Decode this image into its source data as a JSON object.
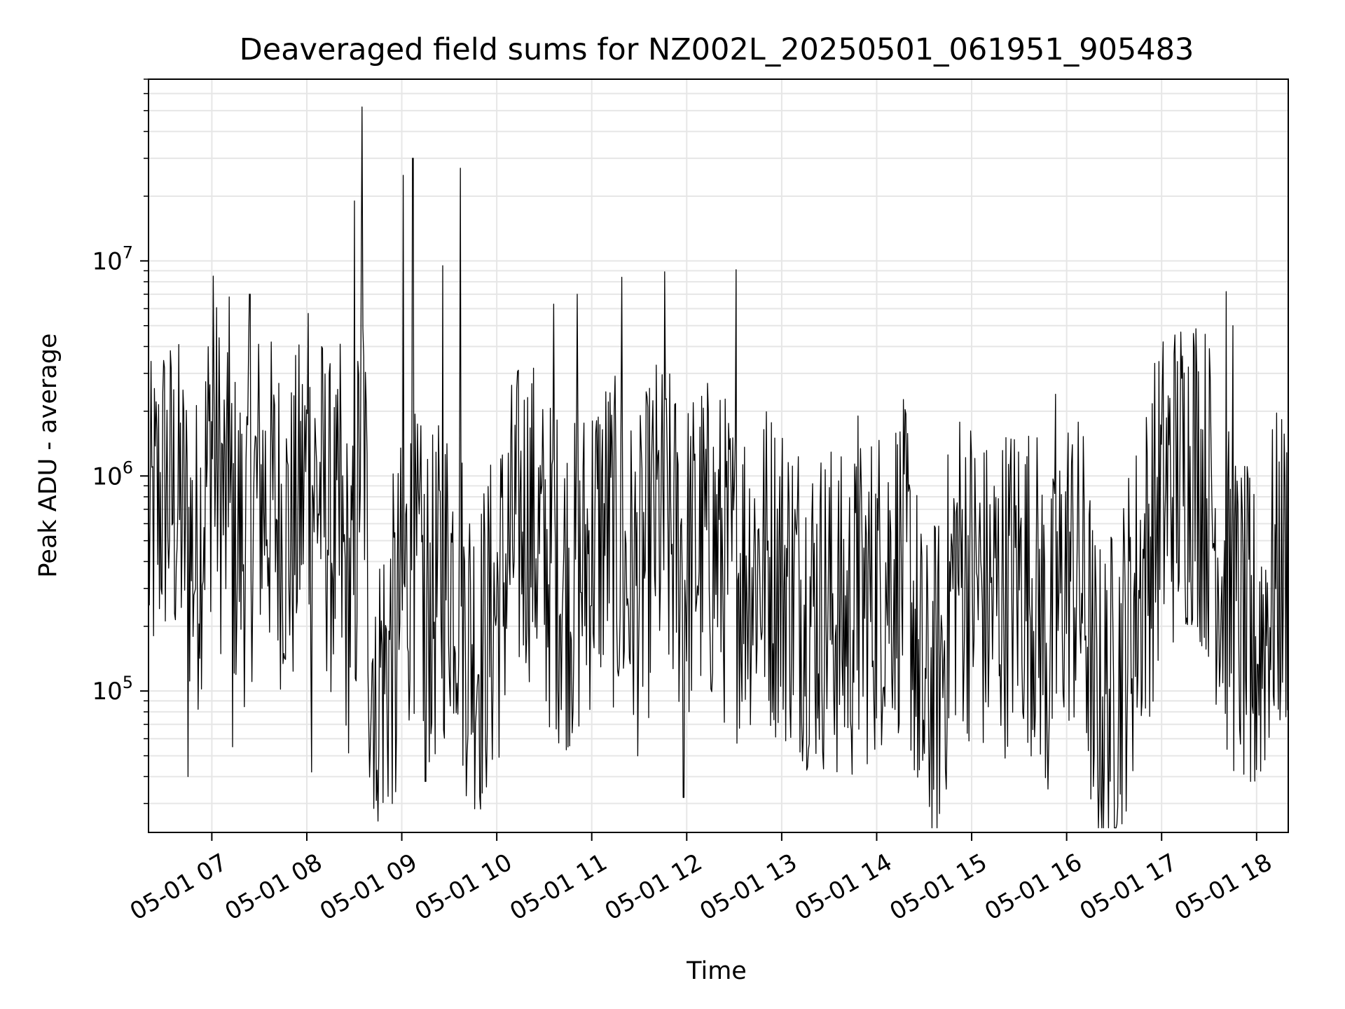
{
  "chart_data": {
    "type": "line",
    "title": "Deaveraged field sums for NZ002L_20250501_061951_905483",
    "xlabel": "Time",
    "ylabel": "Peak ADU - average",
    "x_range": [
      "2025-05-01T06:20:00",
      "2025-05-01T18:20:00"
    ],
    "y_scale": "log",
    "ylim": [
      22000,
      70000000
    ],
    "grid": true,
    "x_tick_labels": [
      "05-01 07",
      "05-01 08",
      "05-01 09",
      "05-01 10",
      "05-01 11",
      "05-01 12",
      "05-01 13",
      "05-01 14",
      "05-01 15",
      "05-01 16",
      "05-01 17",
      "05-01 18"
    ],
    "y_ticks": [
      {
        "value": 100000,
        "base": "10",
        "exp": "5"
      },
      {
        "value": 1000000,
        "base": "10",
        "exp": "6"
      },
      {
        "value": 10000000,
        "base": "10",
        "exp": "7"
      }
    ],
    "series": [
      {
        "color": "#000000",
        "x": [
          "2025-05-01T06:20:00",
          "2025-05-01T06:30:00",
          "2025-05-01T06:40:00",
          "2025-05-01T06:50:00",
          "2025-05-01T07:00:00",
          "2025-05-01T07:10:00",
          "2025-05-01T07:20:00",
          "2025-05-01T07:30:00",
          "2025-05-01T07:40:00",
          "2025-05-01T07:50:00",
          "2025-05-01T08:00:00",
          "2025-05-01T08:10:00",
          "2025-05-01T08:20:00",
          "2025-05-01T08:30:00",
          "2025-05-01T08:35:00",
          "2025-05-01T08:40:00",
          "2025-05-01T08:50:00",
          "2025-05-01T09:00:00",
          "2025-05-01T09:05:00",
          "2025-05-01T09:10:00",
          "2025-05-01T09:20:00",
          "2025-05-01T09:30:00",
          "2025-05-01T09:35:00",
          "2025-05-01T09:40:00",
          "2025-05-01T09:50:00",
          "2025-05-01T10:00:00",
          "2025-05-01T10:10:00",
          "2025-05-01T10:20:00",
          "2025-05-01T10:30:00",
          "2025-05-01T10:40:00",
          "2025-05-01T10:50:00",
          "2025-05-01T11:00:00",
          "2025-05-01T11:10:00",
          "2025-05-01T11:20:00",
          "2025-05-01T11:30:00",
          "2025-05-01T11:40:00",
          "2025-05-01T11:50:00",
          "2025-05-01T12:00:00",
          "2025-05-01T12:10:00",
          "2025-05-01T12:20:00",
          "2025-05-01T12:30:00",
          "2025-05-01T12:40:00",
          "2025-05-01T12:50:00",
          "2025-05-01T13:00:00",
          "2025-05-01T13:10:00",
          "2025-05-01T13:20:00",
          "2025-05-01T13:30:00",
          "2025-05-01T13:40:00",
          "2025-05-01T13:50:00",
          "2025-05-01T14:00:00",
          "2025-05-01T14:10:00",
          "2025-05-01T14:20:00",
          "2025-05-01T14:30:00",
          "2025-05-01T14:40:00",
          "2025-05-01T14:50:00",
          "2025-05-01T15:00:00",
          "2025-05-01T15:10:00",
          "2025-05-01T15:20:00",
          "2025-05-01T15:30:00",
          "2025-05-01T15:40:00",
          "2025-05-01T15:50:00",
          "2025-05-01T16:00:00",
          "2025-05-01T16:10:00",
          "2025-05-01T16:20:00",
          "2025-05-01T16:30:00",
          "2025-05-01T16:40:00",
          "2025-05-01T16:50:00",
          "2025-05-01T17:00:00",
          "2025-05-01T17:10:00",
          "2025-05-01T17:20:00",
          "2025-05-01T17:30:00",
          "2025-05-01T17:40:00",
          "2025-05-01T17:50:00",
          "2025-05-01T18:00:00",
          "2025-05-01T18:10:00",
          "2025-05-01T18:20:00"
        ],
        "y": [
          500000,
          900000,
          700000,
          400000,
          1500000,
          600000,
          500000,
          900000,
          700000,
          500000,
          1000000,
          800000,
          400000,
          250000,
          3000000,
          150000,
          120000,
          250000,
          400000,
          300000,
          250000,
          400000,
          350000,
          200000,
          150000,
          250000,
          500000,
          700000,
          400000,
          350000,
          300000,
          500000,
          600000,
          350000,
          300000,
          600000,
          500000,
          400000,
          500000,
          450000,
          350000,
          400000,
          400000,
          350000,
          300000,
          250000,
          250000,
          200000,
          250000,
          300000,
          400000,
          350000,
          80000,
          120000,
          400000,
          350000,
          250000,
          300000,
          350000,
          300000,
          150000,
          400000,
          300000,
          80000,
          100000,
          200000,
          400000,
          800000,
          1000000,
          1200000,
          800000,
          300000,
          200000,
          150000,
          300000,
          400000
        ],
        "spikes": [
          {
            "x": "2025-05-01T07:01:00",
            "y": 8500000
          },
          {
            "x": "2025-05-01T07:11:00",
            "y": 6800000
          },
          {
            "x": "2025-05-01T07:24:00",
            "y": 7000000
          },
          {
            "x": "2025-05-01T08:01:00",
            "y": 5700000
          },
          {
            "x": "2025-05-01T08:21:00",
            "y": 4100000
          },
          {
            "x": "2025-05-01T08:30:00",
            "y": 19000000
          },
          {
            "x": "2025-05-01T08:35:00",
            "y": 52000000
          },
          {
            "x": "2025-05-01T09:01:00",
            "y": 25000000
          },
          {
            "x": "2025-05-01T09:07:00",
            "y": 30000000
          },
          {
            "x": "2025-05-01T09:26:00",
            "y": 9500000
          },
          {
            "x": "2025-05-01T09:37:00",
            "y": 27000000
          },
          {
            "x": "2025-05-01T10:36:00",
            "y": 6300000
          },
          {
            "x": "2025-05-01T10:51:00",
            "y": 7000000
          },
          {
            "x": "2025-05-01T11:19:00",
            "y": 8400000
          },
          {
            "x": "2025-05-01T11:46:00",
            "y": 8900000
          },
          {
            "x": "2025-05-01T12:31:00",
            "y": 9100000
          },
          {
            "x": "2025-05-01T13:48:00",
            "y": 1900000
          },
          {
            "x": "2025-05-01T15:53:00",
            "y": 2400000
          },
          {
            "x": "2025-05-01T17:20:00",
            "y": 4600000
          },
          {
            "x": "2025-05-01T17:41:00",
            "y": 7200000
          },
          {
            "x": "2025-05-01T17:45:00",
            "y": 5000000
          }
        ],
        "dips": [
          {
            "x": "2025-05-01T06:45:00",
            "y": 40000
          },
          {
            "x": "2025-05-01T07:13:00",
            "y": 55000
          },
          {
            "x": "2025-05-01T08:03:00",
            "y": 42000
          },
          {
            "x": "2025-05-01T08:44:00",
            "y": 31000
          },
          {
            "x": "2025-05-01T08:56:00",
            "y": 34000
          },
          {
            "x": "2025-05-01T09:15:00",
            "y": 38000
          },
          {
            "x": "2025-05-01T11:58:00",
            "y": 32000
          },
          {
            "x": "2025-05-01T14:27:00",
            "y": 43000
          },
          {
            "x": "2025-05-01T15:48:00",
            "y": 35000
          },
          {
            "x": "2025-05-01T16:17:00",
            "y": 36000
          },
          {
            "x": "2025-05-01T17:56:00",
            "y": 38000
          }
        ]
      }
    ]
  }
}
